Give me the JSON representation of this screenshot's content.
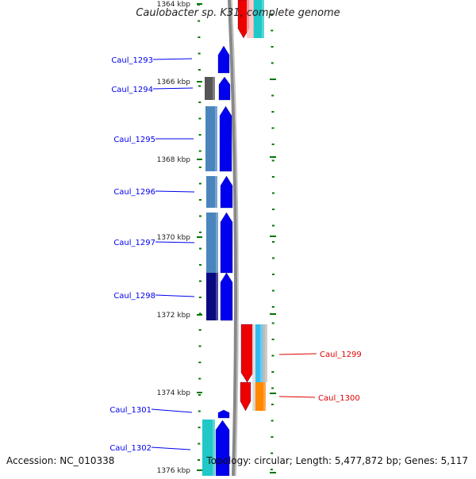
{
  "title": "Caulobacter sp. K31, complete genome",
  "footer": {
    "accession": "Accession: NC_010338",
    "summary": "Topology: circular; Length: 5,477,872 bp; Genes: 5,117"
  },
  "scale_labels": [
    "1364 kbp",
    "1366 kbp",
    "1368 kbp",
    "1370 kbp",
    "1372 kbp",
    "1374 kbp",
    "1376 kbp"
  ],
  "genes": [
    {
      "label": "Caul_1293",
      "strand": "forward",
      "color": "#0000ee"
    },
    {
      "label": "Caul_1294",
      "strand": "forward",
      "color": "#0000ee"
    },
    {
      "label": "Caul_1295",
      "strand": "forward",
      "color": "#0000ee"
    },
    {
      "label": "Caul_1296",
      "strand": "forward",
      "color": "#0000ee"
    },
    {
      "label": "Caul_1297",
      "strand": "forward",
      "color": "#0000ee"
    },
    {
      "label": "Caul_1298",
      "strand": "forward",
      "color": "#0000ee"
    },
    {
      "label": "Caul_1299",
      "strand": "reverse",
      "color": "#dd0000"
    },
    {
      "label": "Caul_1300",
      "strand": "reverse",
      "color": "#dd0000"
    },
    {
      "label": "Caul_1301",
      "strand": "forward",
      "color": "#0000ee"
    },
    {
      "label": "Caul_1302",
      "strand": "forward",
      "color": "#0000ee"
    }
  ],
  "colors": {
    "forward_gene": "#0000ee",
    "reverse_gene": "#ee0000",
    "tick": "#007700",
    "backbone": "#888888",
    "cog_light_blue": "#4a86bd",
    "cog_dark_blue": "#0a0a80",
    "cog_grey": "#555555",
    "cog_cyan": "#20c8c8",
    "cog_orange": "#ff8800",
    "cog_sky": "#33bbee"
  }
}
